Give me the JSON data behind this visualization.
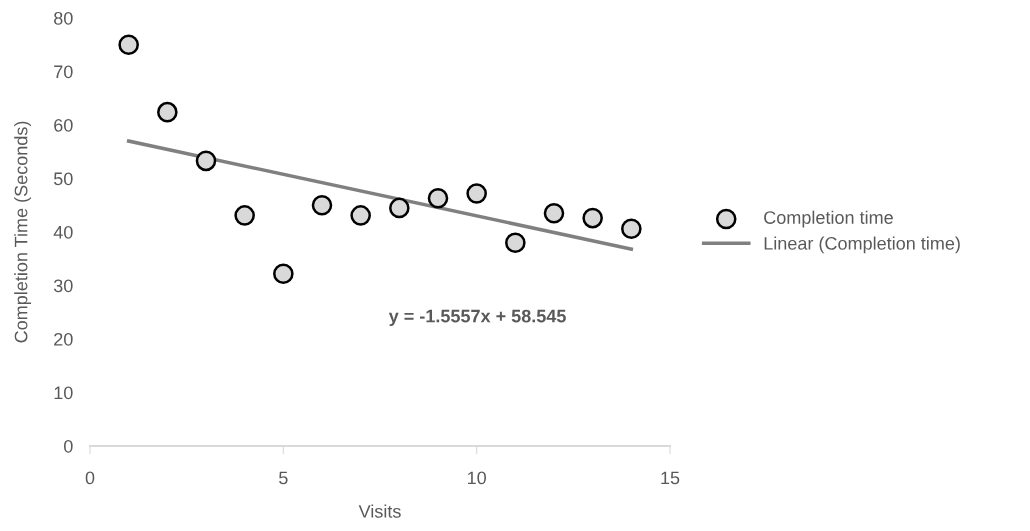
{
  "chart_data": {
    "type": "scatter",
    "xlabel": "Visits",
    "ylabel": "Completion Time (Seconds)",
    "series": [
      {
        "name": "Completion time",
        "color": "#d9d9d9",
        "marker": "circle",
        "x": [
          1,
          2,
          3,
          4,
          5,
          6,
          7,
          8,
          9,
          10,
          11,
          12,
          13,
          14
        ],
        "values": [
          75.0,
          62.4,
          53.3,
          43.1,
          32.2,
          45.0,
          43.1,
          44.5,
          46.3,
          47.2,
          38.0,
          43.5,
          42.6,
          40.6
        ]
      },
      {
        "name": "Linear (Completion time)",
        "type": "line",
        "color": "#808080",
        "x": [
          1,
          14
        ],
        "values": [
          57.0,
          36.8
        ],
        "marker": "none"
      }
    ],
    "annotations": [
      "y = -1.5557x + 58.545"
    ],
    "xlim": [
      0,
      15
    ],
    "xticks": [
      0,
      5,
      10,
      15
    ],
    "ylim": [
      0,
      80
    ],
    "yticks": [
      0,
      10,
      20,
      30,
      40,
      50,
      60,
      70,
      80
    ],
    "grid": false,
    "legend": "right",
    "line_style": "solid"
  }
}
